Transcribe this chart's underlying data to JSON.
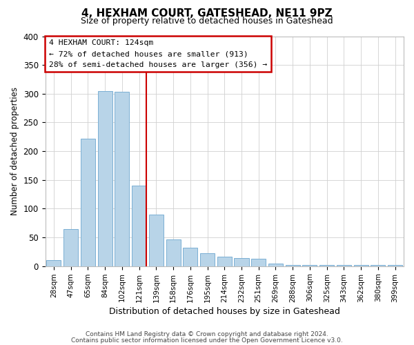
{
  "title": "4, HEXHAM COURT, GATESHEAD, NE11 9PZ",
  "subtitle": "Size of property relative to detached houses in Gateshead",
  "xlabel": "Distribution of detached houses by size in Gateshead",
  "ylabel": "Number of detached properties",
  "bar_labels": [
    "28sqm",
    "47sqm",
    "65sqm",
    "84sqm",
    "102sqm",
    "121sqm",
    "139sqm",
    "158sqm",
    "176sqm",
    "195sqm",
    "214sqm",
    "232sqm",
    "251sqm",
    "269sqm",
    "288sqm",
    "306sqm",
    "325sqm",
    "343sqm",
    "362sqm",
    "380sqm",
    "399sqm"
  ],
  "bar_values": [
    10,
    65,
    222,
    305,
    303,
    140,
    90,
    47,
    32,
    23,
    17,
    14,
    13,
    5,
    2,
    2,
    2,
    2,
    2,
    2,
    2
  ],
  "bar_color": "#b8d4e8",
  "bar_edge_color": "#7aafd4",
  "vline_color": "#cc0000",
  "annotation_title": "4 HEXHAM COURT: 124sqm",
  "annotation_line1": "← 72% of detached houses are smaller (913)",
  "annotation_line2": "28% of semi-detached houses are larger (356) →",
  "annotation_box_color": "#ffffff",
  "annotation_box_edge": "#cc0000",
  "ylim": [
    0,
    400
  ],
  "yticks": [
    0,
    50,
    100,
    150,
    200,
    250,
    300,
    350,
    400
  ],
  "footer1": "Contains HM Land Registry data © Crown copyright and database right 2024.",
  "footer2": "Contains public sector information licensed under the Open Government Licence v3.0.",
  "bg_color": "#ffffff",
  "grid_color": "#d0d0d0"
}
